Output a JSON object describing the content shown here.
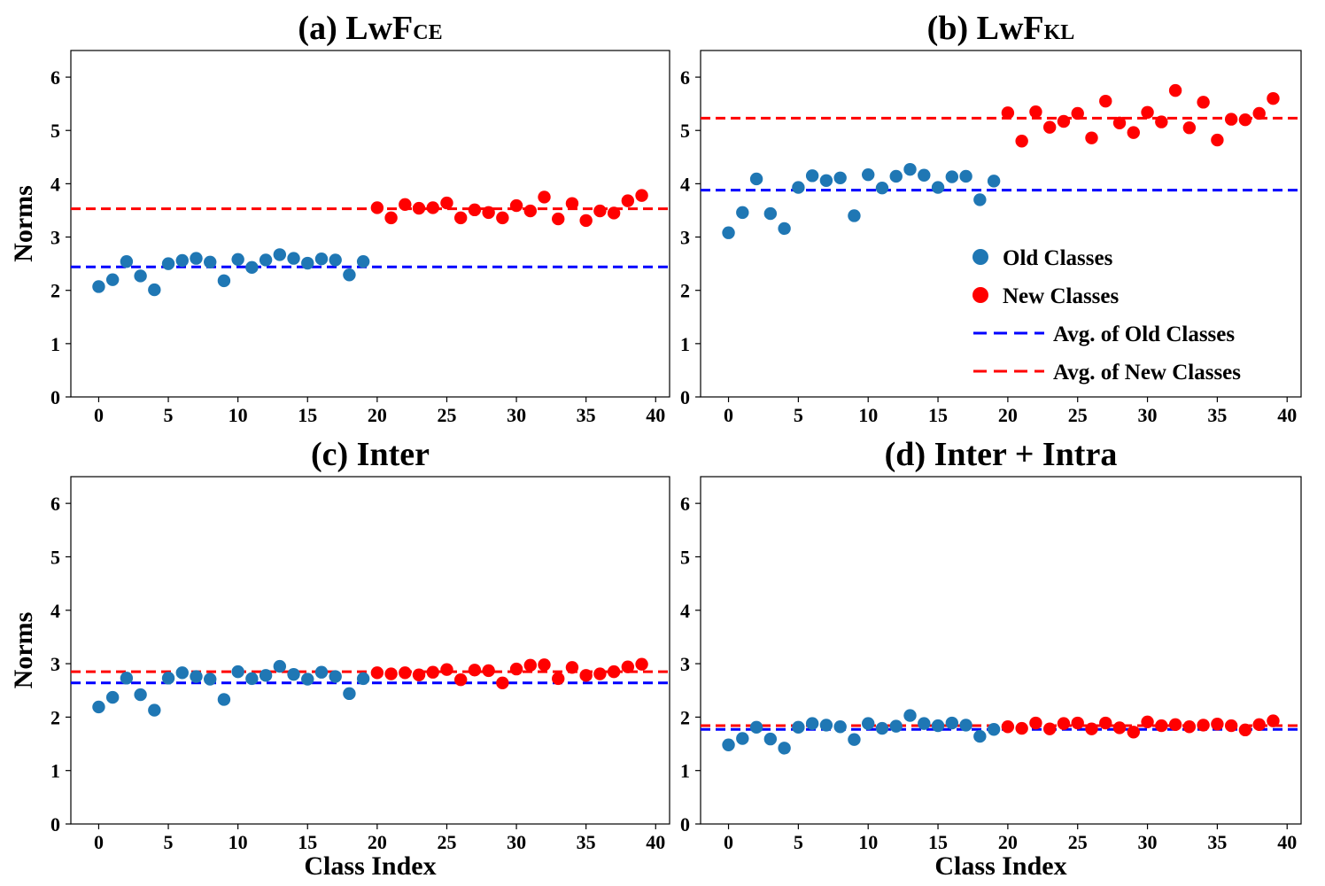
{
  "chart_data": [
    {
      "type": "scatter",
      "title": "(a) LwF",
      "title_subscript": "CE",
      "ylabel": "Norms",
      "xlabel": "",
      "xlim": [
        -2,
        41
      ],
      "ylim": [
        0,
        6.5
      ],
      "xticks": [
        0,
        5,
        10,
        15,
        20,
        25,
        30,
        35,
        40
      ],
      "yticks": [
        0,
        1,
        2,
        3,
        4,
        5,
        6
      ],
      "series": [
        {
          "color": "#1f77b4",
          "x": [
            0,
            1,
            2,
            3,
            4,
            5,
            6,
            7,
            8,
            9,
            10,
            11,
            12,
            13,
            14,
            15,
            16,
            17,
            18,
            19
          ],
          "y": [
            2.07,
            2.2,
            2.54,
            2.27,
            2.01,
            2.5,
            2.56,
            2.6,
            2.53,
            2.18,
            2.58,
            2.43,
            2.57,
            2.67,
            2.6,
            2.51,
            2.59,
            2.57,
            2.29,
            2.54
          ]
        },
        {
          "color": "#ff0000",
          "x": [
            20,
            21,
            22,
            23,
            24,
            25,
            26,
            27,
            28,
            29,
            30,
            31,
            32,
            33,
            34,
            35,
            36,
            37,
            38,
            39
          ],
          "y": [
            3.55,
            3.36,
            3.61,
            3.54,
            3.55,
            3.64,
            3.36,
            3.51,
            3.46,
            3.36,
            3.59,
            3.49,
            3.75,
            3.34,
            3.63,
            3.31,
            3.49,
            3.45,
            3.68,
            3.78
          ]
        }
      ],
      "hlines": [
        {
          "color": "#0000ff",
          "y": 2.44
        },
        {
          "color": "#ff0000",
          "y": 3.53
        }
      ]
    },
    {
      "type": "scatter",
      "title": "(b) LwF",
      "title_subscript": "KL",
      "ylabel": "",
      "xlabel": "",
      "xlim": [
        -2,
        41
      ],
      "ylim": [
        0,
        6.5
      ],
      "xticks": [
        0,
        5,
        10,
        15,
        20,
        25,
        30,
        35,
        40
      ],
      "yticks": [
        0,
        1,
        2,
        3,
        4,
        5,
        6
      ],
      "series": [
        {
          "color": "#1f77b4",
          "x": [
            0,
            1,
            2,
            3,
            4,
            5,
            6,
            7,
            8,
            9,
            10,
            11,
            12,
            13,
            14,
            15,
            16,
            17,
            18,
            19
          ],
          "y": [
            3.08,
            3.46,
            4.09,
            3.44,
            3.16,
            3.93,
            4.15,
            4.06,
            4.11,
            3.4,
            4.17,
            3.92,
            4.14,
            4.27,
            4.16,
            3.93,
            4.13,
            4.14,
            3.7,
            4.05
          ]
        },
        {
          "color": "#ff0000",
          "x": [
            20,
            21,
            22,
            23,
            24,
            25,
            26,
            27,
            28,
            29,
            30,
            31,
            32,
            33,
            34,
            35,
            36,
            37,
            38,
            39
          ],
          "y": [
            5.33,
            4.8,
            5.35,
            5.06,
            5.17,
            5.32,
            4.86,
            5.55,
            5.14,
            4.96,
            5.34,
            5.16,
            5.75,
            5.05,
            5.53,
            4.82,
            5.21,
            5.2,
            5.32,
            5.6
          ]
        }
      ],
      "hlines": [
        {
          "color": "#0000ff",
          "y": 3.88
        },
        {
          "color": "#ff0000",
          "y": 5.23
        }
      ],
      "legend": {
        "placement": "lower-right",
        "entries": [
          {
            "label": "Old Classes",
            "color": "#1f77b4",
            "marker": "dot"
          },
          {
            "label": "New Classes",
            "color": "#ff0000",
            "marker": "dot"
          },
          {
            "label": "Avg. of Old Classes",
            "color": "#0000ff",
            "marker": "dashed-line"
          },
          {
            "label": "Avg. of New Classes",
            "color": "#ff0000",
            "marker": "dashed-line"
          }
        ]
      }
    },
    {
      "type": "scatter",
      "title": "(c) Inter",
      "title_subscript": "",
      "ylabel": "Norms",
      "xlabel": "Class Index",
      "xlim": [
        -2,
        41
      ],
      "ylim": [
        0,
        6.5
      ],
      "xticks": [
        0,
        5,
        10,
        15,
        20,
        25,
        30,
        35,
        40
      ],
      "yticks": [
        0,
        1,
        2,
        3,
        4,
        5,
        6
      ],
      "series": [
        {
          "color": "#1f77b4",
          "x": [
            0,
            1,
            2,
            3,
            4,
            5,
            6,
            7,
            8,
            9,
            10,
            11,
            12,
            13,
            14,
            15,
            16,
            17,
            18,
            19
          ],
          "y": [
            2.19,
            2.37,
            2.73,
            2.42,
            2.13,
            2.73,
            2.83,
            2.76,
            2.71,
            2.33,
            2.85,
            2.72,
            2.78,
            2.95,
            2.8,
            2.71,
            2.84,
            2.76,
            2.44,
            2.72
          ]
        },
        {
          "color": "#ff0000",
          "x": [
            20,
            21,
            22,
            23,
            24,
            25,
            26,
            27,
            28,
            29,
            30,
            31,
            32,
            33,
            34,
            35,
            36,
            37,
            38,
            39
          ],
          "y": [
            2.83,
            2.81,
            2.83,
            2.79,
            2.84,
            2.89,
            2.7,
            2.88,
            2.87,
            2.64,
            2.9,
            2.97,
            2.98,
            2.72,
            2.93,
            2.78,
            2.81,
            2.85,
            2.94,
            2.99
          ]
        }
      ],
      "hlines": [
        {
          "color": "#0000ff",
          "y": 2.64
        },
        {
          "color": "#ff0000",
          "y": 2.85
        }
      ]
    },
    {
      "type": "scatter",
      "title": "(d) Inter + Intra",
      "title_subscript": "",
      "ylabel": "",
      "xlabel": "Class Index",
      "xlim": [
        -2,
        41
      ],
      "ylim": [
        0,
        6.5
      ],
      "xticks": [
        0,
        5,
        10,
        15,
        20,
        25,
        30,
        35,
        40
      ],
      "yticks": [
        0,
        1,
        2,
        3,
        4,
        5,
        6
      ],
      "series": [
        {
          "color": "#1f77b4",
          "x": [
            0,
            1,
            2,
            3,
            4,
            5,
            6,
            7,
            8,
            9,
            10,
            11,
            12,
            13,
            14,
            15,
            16,
            17,
            18,
            19
          ],
          "y": [
            1.48,
            1.6,
            1.81,
            1.59,
            1.42,
            1.81,
            1.88,
            1.85,
            1.82,
            1.58,
            1.88,
            1.79,
            1.83,
            2.03,
            1.88,
            1.84,
            1.89,
            1.85,
            1.64,
            1.77
          ]
        },
        {
          "color": "#ff0000",
          "x": [
            20,
            21,
            22,
            23,
            24,
            25,
            26,
            27,
            28,
            29,
            30,
            31,
            32,
            33,
            34,
            35,
            36,
            37,
            38,
            39
          ],
          "y": [
            1.82,
            1.79,
            1.89,
            1.78,
            1.88,
            1.89,
            1.78,
            1.89,
            1.8,
            1.72,
            1.91,
            1.84,
            1.86,
            1.82,
            1.85,
            1.87,
            1.84,
            1.76,
            1.86,
            1.93
          ]
        }
      ],
      "hlines": [
        {
          "color": "#0000ff",
          "y": 1.77
        },
        {
          "color": "#ff0000",
          "y": 1.84
        }
      ]
    }
  ]
}
